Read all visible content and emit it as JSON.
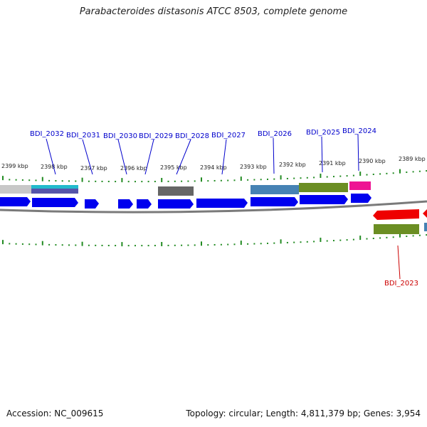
{
  "title": "Parabacteroides distasonis ATCC 8503, complete genome",
  "footer": {
    "accession": "Accession: NC_009615",
    "summary": "Topology: circular; Length: 4,811,379 bp; Genes: 3,954"
  },
  "colors": {
    "cds_forward": "#0000ee",
    "cds_reverse": "#ee0000",
    "label_forward": "#0000cc",
    "label_reverse": "#cc0000",
    "tick": "#228b22",
    "backbone": "#7a7a7a"
  },
  "scale_labels": [
    "2399 kbp",
    "2398 kbp",
    "2397 kbp",
    "2396 kbp",
    "2395 kbp",
    "2394 kbp",
    "2393 kbp",
    "2392 kbp",
    "2391 kbp",
    "2390 kbp",
    "2389 kbp"
  ],
  "gene_labels_forward": [
    "BDI_2032",
    "BDI_2031",
    "BDI_2030",
    "BDI_2029",
    "BDI_2028",
    "BDI_2027",
    "BDI_2026",
    "BDI_2025",
    "BDI_2024"
  ],
  "gene_labels_reverse": [
    "BDI_2023"
  ]
}
